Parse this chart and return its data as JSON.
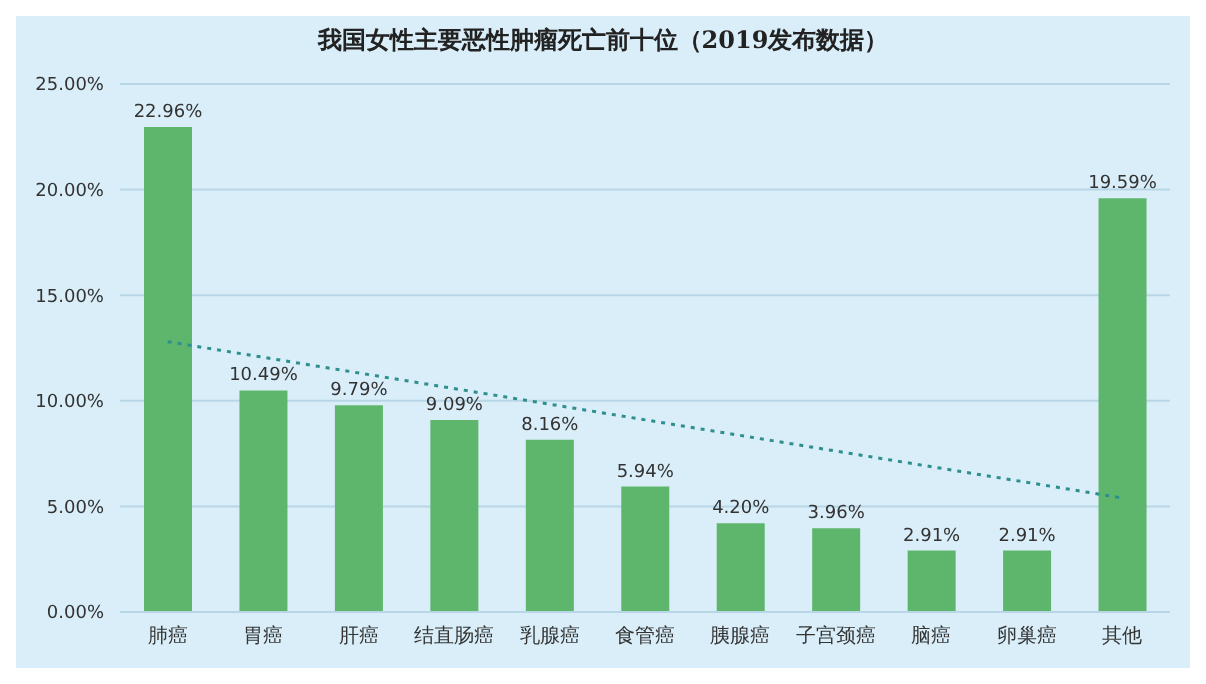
{
  "chart_data": {
    "type": "bar",
    "title": "我国女性主要恶性肿瘤死亡前十位（2019发布数据）",
    "categories": [
      "肺癌",
      "胃癌",
      "肝癌",
      "结直肠癌",
      "乳腺癌",
      "食管癌",
      "胰腺癌",
      "子宫颈癌",
      "脑癌",
      "卵巢癌",
      "其他"
    ],
    "series": [
      {
        "color": "#5db66c",
        "values": [
          22.96,
          10.49,
          9.79,
          9.09,
          8.16,
          5.94,
          4.2,
          3.96,
          2.91,
          2.91,
          19.59
        ],
        "value_labels": [
          "22.96%",
          "10.49%",
          "9.79%",
          "9.09%",
          "8.16%",
          "5.94%",
          "4.20%",
          "3.96%",
          "2.91%",
          "2.91%",
          "19.59%"
        ]
      },
      {
        "type": "line",
        "color": "#2f8f8f",
        "line_style": "dotted",
        "marker": "none",
        "x": [
          "肺癌",
          "其他"
        ],
        "values": [
          12.8,
          5.4
        ]
      }
    ],
    "ylim": [
      0,
      25
    ],
    "yticks": [
      {
        "value": 0,
        "label": "0.00%"
      },
      {
        "value": 5,
        "label": "5.00%"
      },
      {
        "value": 10,
        "label": "10.00%"
      },
      {
        "value": 15,
        "label": "15.00%"
      },
      {
        "value": 20,
        "label": "20.00%"
      },
      {
        "value": 25,
        "label": "25.00%"
      }
    ],
    "grid": "y",
    "legend": false
  }
}
